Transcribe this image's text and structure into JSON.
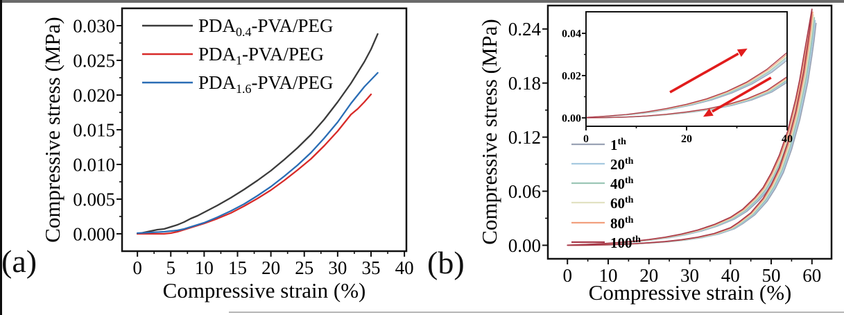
{
  "chart_data": [
    {
      "id": "panel_a",
      "type": "line",
      "panel_label": "(a)",
      "xlabel": "Compressive strain (%)",
      "ylabel": "Compressive stress (MPa)",
      "xlim": [
        -2.3,
        40.3
      ],
      "ylim": [
        -0.0025,
        0.0325
      ],
      "xticks": [
        0,
        5,
        10,
        15,
        20,
        25,
        30,
        35,
        40
      ],
      "yticks": [
        0.0,
        0.005,
        0.01,
        0.015,
        0.02,
        0.025,
        0.03
      ],
      "x_decimals": 0,
      "y_decimals": 3,
      "grid": false,
      "legend_position": "top-left-inside",
      "series": [
        {
          "name": "PDA0.4-PVA/PEG",
          "label_pre": "PDA",
          "label_sub": "0.4",
          "label_post": "-PVA/PEG",
          "color": "#3b3b3b",
          "points": [
            [
              0,
              0.0
            ],
            [
              1,
              0.0002
            ],
            [
              2,
              0.0004
            ],
            [
              3,
              0.0006
            ],
            [
              4,
              0.0007
            ],
            [
              5,
              0.001
            ],
            [
              6,
              0.0013
            ],
            [
              7,
              0.0017
            ],
            [
              8,
              0.0022
            ],
            [
              9,
              0.0026
            ],
            [
              10,
              0.0031
            ],
            [
              12,
              0.0041
            ],
            [
              14,
              0.0052
            ],
            [
              16,
              0.0064
            ],
            [
              18,
              0.0077
            ],
            [
              20,
              0.0091
            ],
            [
              22,
              0.0107
            ],
            [
              24,
              0.0124
            ],
            [
              26,
              0.0143
            ],
            [
              28,
              0.0165
            ],
            [
              30,
              0.019
            ],
            [
              32,
              0.0217
            ],
            [
              34,
              0.0248
            ],
            [
              35,
              0.0266
            ],
            [
              36,
              0.0288
            ]
          ]
        },
        {
          "name": "PDA1-PVA/PEG",
          "label_pre": "PDA",
          "label_sub": "1",
          "label_post": "-PVA/PEG",
          "color": "#d82a28",
          "points": [
            [
              0,
              0.0
            ],
            [
              1,
              0.0
            ],
            [
              2,
              0.0
            ],
            [
              3,
              0.0
            ],
            [
              4,
              0.0
            ],
            [
              5,
              0.0001
            ],
            [
              6,
              0.0003
            ],
            [
              7,
              0.0006
            ],
            [
              8,
              0.0009
            ],
            [
              9,
              0.0012
            ],
            [
              10,
              0.0015
            ],
            [
              12,
              0.0022
            ],
            [
              14,
              0.003
            ],
            [
              16,
              0.004
            ],
            [
              18,
              0.0051
            ],
            [
              20,
              0.0063
            ],
            [
              22,
              0.0077
            ],
            [
              24,
              0.0092
            ],
            [
              26,
              0.0108
            ],
            [
              28,
              0.0127
            ],
            [
              30,
              0.0148
            ],
            [
              32,
              0.0172
            ],
            [
              33,
              0.018
            ],
            [
              34,
              0.019
            ],
            [
              35,
              0.0201
            ]
          ]
        },
        {
          "name": "PDA1.6-PVA/PEG",
          "label_pre": "PDA",
          "label_sub": "1.6",
          "label_post": "-PVA/PEG",
          "color": "#2a6db5",
          "points": [
            [
              0,
              0.0001
            ],
            [
              2,
              0.0002
            ],
            [
              4,
              0.0003
            ],
            [
              5,
              0.0004
            ],
            [
              6,
              0.0005
            ],
            [
              7,
              0.0007
            ],
            [
              8,
              0.001
            ],
            [
              9,
              0.0013
            ],
            [
              10,
              0.0016
            ],
            [
              12,
              0.0024
            ],
            [
              14,
              0.0033
            ],
            [
              16,
              0.0043
            ],
            [
              18,
              0.0055
            ],
            [
              20,
              0.0068
            ],
            [
              22,
              0.0083
            ],
            [
              24,
              0.0099
            ],
            [
              26,
              0.0117
            ],
            [
              28,
              0.0138
            ],
            [
              30,
              0.0161
            ],
            [
              32,
              0.0188
            ],
            [
              34,
              0.0212
            ],
            [
              35,
              0.0222
            ],
            [
              36,
              0.0232
            ]
          ]
        }
      ]
    },
    {
      "id": "panel_b",
      "type": "line",
      "panel_label": "(b)",
      "xlabel": "Compressive strain (%)",
      "ylabel": "Compressive stress (MPa)",
      "xlim": [
        -4.8,
        64.8
      ],
      "ylim": [
        -0.015,
        0.266
      ],
      "xticks": [
        0,
        10,
        20,
        30,
        40,
        50,
        60
      ],
      "yticks": [
        0.0,
        0.06,
        0.12,
        0.18,
        0.24
      ],
      "x_decimals": 0,
      "y_decimals": 2,
      "grid": false,
      "legend_position": "left-inside",
      "cycles": [
        {
          "label_base": "1",
          "label_sup": "th",
          "color": "#9aa2b4"
        },
        {
          "label_base": "20",
          "label_sup": "th",
          "color": "#a6c9e0"
        },
        {
          "label_base": "40",
          "label_sup": "th",
          "color": "#9cc6b6"
        },
        {
          "label_base": "60",
          "label_sup": "th",
          "color": "#e2e2c2"
        },
        {
          "label_base": "80",
          "label_sup": "th",
          "color": "#f2a07e"
        },
        {
          "label_base": "100",
          "label_sup": "th",
          "color": "#a83b4b"
        }
      ],
      "loading": [
        [
          0,
          0.0002
        ],
        [
          4,
          0.0008
        ],
        [
          8,
          0.0016
        ],
        [
          12,
          0.0028
        ],
        [
          16,
          0.0044
        ],
        [
          20,
          0.0064
        ],
        [
          24,
          0.009
        ],
        [
          28,
          0.0125
        ],
        [
          32,
          0.017
        ],
        [
          36,
          0.023
        ],
        [
          40,
          0.031
        ],
        [
          43,
          0.04
        ],
        [
          46,
          0.053
        ],
        [
          48,
          0.064
        ],
        [
          50,
          0.08
        ],
        [
          52,
          0.1
        ],
        [
          54,
          0.126
        ],
        [
          56,
          0.162
        ],
        [
          57,
          0.184
        ],
        [
          58,
          0.21
        ],
        [
          59,
          0.236
        ],
        [
          60,
          0.262
        ]
      ],
      "unloading": [
        [
          60,
          0.262
        ],
        [
          59.5,
          0.241
        ],
        [
          59,
          0.224
        ],
        [
          58,
          0.193
        ],
        [
          57,
          0.17
        ],
        [
          56,
          0.148
        ],
        [
          54,
          0.113
        ],
        [
          52,
          0.086
        ],
        [
          50,
          0.067
        ],
        [
          48,
          0.052
        ],
        [
          45,
          0.036
        ],
        [
          42,
          0.0255
        ],
        [
          40,
          0.0195
        ],
        [
          36,
          0.013
        ],
        [
          32,
          0.009
        ],
        [
          28,
          0.0062
        ],
        [
          24,
          0.0042
        ],
        [
          20,
          0.0028
        ],
        [
          16,
          0.0017
        ],
        [
          12,
          0.0009
        ],
        [
          8,
          0.0004
        ],
        [
          4,
          0.0001
        ],
        [
          0,
          0.0
        ]
      ],
      "inset": {
        "xlim": [
          0,
          40
        ],
        "ylim": [
          -0.004,
          0.0502
        ],
        "xticks": [
          0,
          20,
          40
        ],
        "yticks": [
          0.0,
          0.02,
          0.04
        ],
        "x_decimals": 0,
        "y_decimals": 2,
        "arrows": [
          {
            "name": "loading-arrow",
            "from": [
              16.7,
              0.0121
            ],
            "to": [
              32.1,
              0.0328
            ],
            "color": "#e11c1c"
          },
          {
            "name": "unloading-arrow",
            "from": [
              36.8,
              0.019
            ],
            "to": [
              23.3,
              0.0005
            ],
            "color": "#e11c1c"
          }
        ]
      }
    }
  ]
}
